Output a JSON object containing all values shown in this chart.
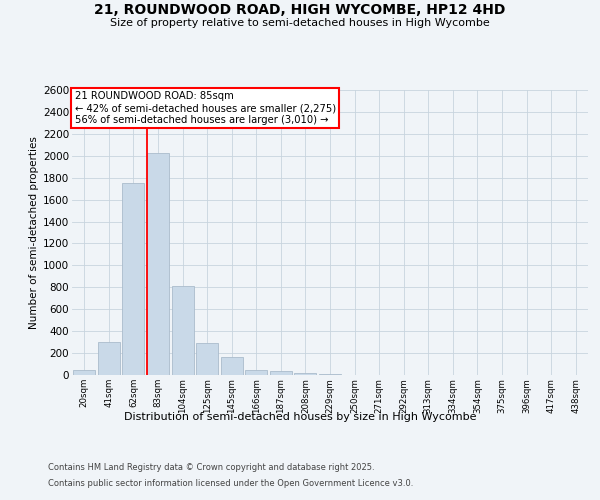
{
  "title_line1": "21, ROUNDWOOD ROAD, HIGH WYCOMBE, HP12 4HD",
  "title_line2": "Size of property relative to semi-detached houses in High Wycombe",
  "xlabel": "Distribution of semi-detached houses by size in High Wycombe",
  "ylabel": "Number of semi-detached properties",
  "categories": [
    "20sqm",
    "41sqm",
    "62sqm",
    "83sqm",
    "104sqm",
    "125sqm",
    "145sqm",
    "166sqm",
    "187sqm",
    "208sqm",
    "229sqm",
    "250sqm",
    "271sqm",
    "292sqm",
    "313sqm",
    "334sqm",
    "354sqm",
    "375sqm",
    "396sqm",
    "417sqm",
    "438sqm"
  ],
  "values": [
    50,
    300,
    1750,
    2025,
    810,
    290,
    160,
    50,
    35,
    20,
    5,
    0,
    0,
    0,
    0,
    0,
    0,
    0,
    0,
    0,
    0
  ],
  "bar_color": "#c9d9e8",
  "bar_edgecolor": "#aabccc",
  "red_line_bar_index": 3,
  "ylim": [
    0,
    2600
  ],
  "yticks": [
    0,
    200,
    400,
    600,
    800,
    1000,
    1200,
    1400,
    1600,
    1800,
    2000,
    2200,
    2400,
    2600
  ],
  "annotation_title": "21 ROUNDWOOD ROAD: 85sqm",
  "annotation_line1": "← 42% of semi-detached houses are smaller (2,275)",
  "annotation_line2": "56% of semi-detached houses are larger (3,010) →",
  "footer_line1": "Contains HM Land Registry data © Crown copyright and database right 2025.",
  "footer_line2": "Contains public sector information licensed under the Open Government Licence v3.0.",
  "background_color": "#f0f4f8",
  "grid_color": "#c8d4de"
}
